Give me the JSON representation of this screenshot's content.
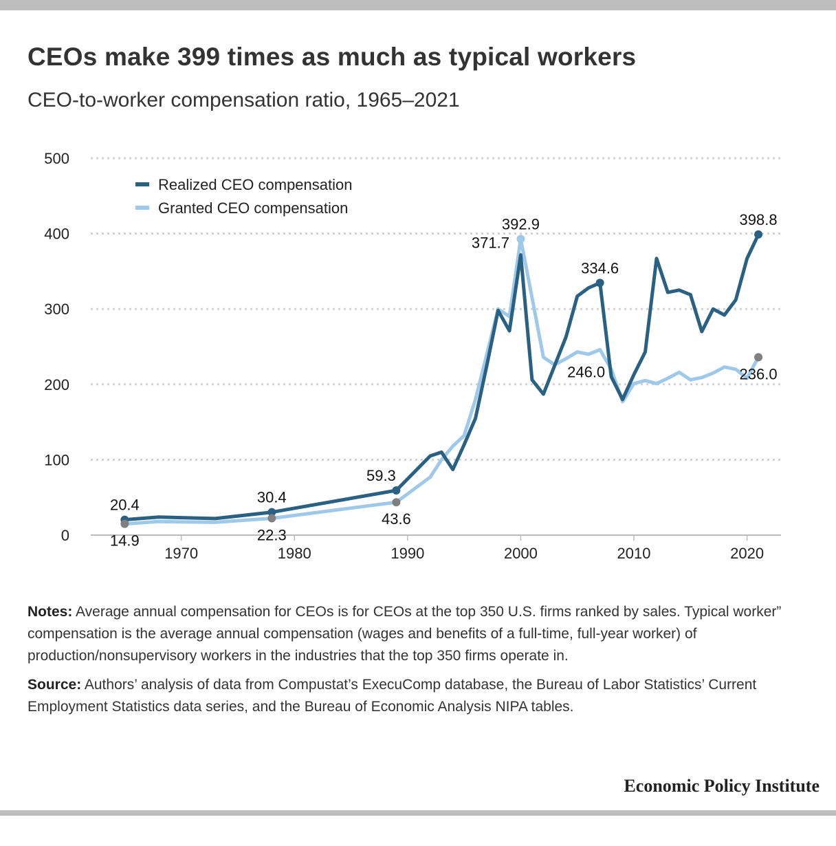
{
  "title": "CEOs make 399 times as much as typical workers",
  "subtitle": "CEO-to-worker compensation ratio, 1965–2021",
  "colors": {
    "realized": "#2a6182",
    "granted": "#9fc9e8",
    "marker_gray": "#808080",
    "grid": "#d2d2d2",
    "axis": "#bbbbbb"
  },
  "chart_data": {
    "type": "line",
    "xlabel": "",
    "ylabel": "",
    "xlim": [
      1962,
      2023
    ],
    "ylim": [
      0,
      500
    ],
    "x_ticks": [
      1970,
      1980,
      1990,
      2000,
      2010,
      2020
    ],
    "y_ticks": [
      0,
      100,
      200,
      300,
      400,
      500
    ],
    "grid": true,
    "legend_position": "top-left",
    "series": [
      {
        "name": "Realized CEO compensation",
        "color": "#2a6182",
        "x": [
          1965,
          1968,
          1973,
          1978,
          1989,
          1992,
          1993,
          1994,
          1995,
          1996,
          1997,
          1998,
          1999,
          2000,
          2001,
          2002,
          2003,
          2004,
          2005,
          2006,
          2007,
          2008,
          2009,
          2010,
          2011,
          2012,
          2013,
          2014,
          2015,
          2016,
          2017,
          2018,
          2019,
          2020,
          2021
        ],
        "y": [
          20.4,
          24,
          22,
          30.4,
          59.3,
          105,
          110,
          87,
          120,
          155,
          225,
          298,
          271,
          371.7,
          206,
          187,
          225,
          263,
          317,
          328,
          334.6,
          210,
          180,
          213,
          243,
          367,
          322,
          325,
          319,
          270,
          300,
          292,
          312,
          367,
          398.8
        ]
      },
      {
        "name": "Granted CEO compensation",
        "color": "#9fc9e8",
        "x": [
          1965,
          1968,
          1973,
          1978,
          1989,
          1992,
          1993,
          1994,
          1995,
          1996,
          1997,
          1998,
          1999,
          2000,
          2001,
          2002,
          2003,
          2004,
          2005,
          2006,
          2007,
          2008,
          2009,
          2010,
          2011,
          2012,
          2013,
          2014,
          2015,
          2016,
          2017,
          2018,
          2019,
          2020,
          2021
        ],
        "y": [
          14.9,
          18,
          17,
          22.3,
          43.6,
          77,
          100,
          118,
          132,
          180,
          240,
          300,
          290,
          392.9,
          315,
          236,
          226,
          234,
          243,
          240,
          246.0,
          220,
          177,
          201,
          205,
          201,
          208,
          216,
          206,
          209,
          215,
          223,
          220,
          208,
          236.0
        ]
      }
    ],
    "markers": [
      {
        "series": 0,
        "x": 1965,
        "y": 20.4
      },
      {
        "series": 0,
        "x": 1978,
        "y": 30.4
      },
      {
        "series": 0,
        "x": 1989,
        "y": 59.3
      },
      {
        "series": 0,
        "x": 2007,
        "y": 334.6
      },
      {
        "series": 0,
        "x": 2021,
        "y": 398.8
      },
      {
        "series": 1,
        "x": 2000,
        "y": 392.9
      },
      {
        "series": -1,
        "x": 1965,
        "y": 14.9
      },
      {
        "series": -1,
        "x": 1978,
        "y": 22.3
      },
      {
        "series": -1,
        "x": 1989,
        "y": 43.6
      },
      {
        "series": -1,
        "x": 2021,
        "y": 236.0
      }
    ],
    "annotations": [
      {
        "text": "20.4",
        "x": 1965,
        "y": 20.4,
        "pos": "above"
      },
      {
        "text": "14.9",
        "x": 1965,
        "y": 14.9,
        "pos": "below"
      },
      {
        "text": "30.4",
        "x": 1978,
        "y": 30.4,
        "pos": "above"
      },
      {
        "text": "22.3",
        "x": 1978,
        "y": 22.3,
        "pos": "below"
      },
      {
        "text": "59.3",
        "x": 1989,
        "y": 59.3,
        "pos": "above-left"
      },
      {
        "text": "43.6",
        "x": 1989,
        "y": 43.6,
        "pos": "below"
      },
      {
        "text": "371.7",
        "x": 2000,
        "y": 371.7,
        "pos": "left"
      },
      {
        "text": "392.9",
        "x": 2000,
        "y": 392.9,
        "pos": "above"
      },
      {
        "text": "334.6",
        "x": 2007,
        "y": 334.6,
        "pos": "above"
      },
      {
        "text": "246.0",
        "x": 2007,
        "y": 246.0,
        "pos": "below-left"
      },
      {
        "text": "398.8",
        "x": 2021,
        "y": 398.8,
        "pos": "above"
      },
      {
        "text": "236.0",
        "x": 2021,
        "y": 236.0,
        "pos": "below"
      }
    ]
  },
  "notes": {
    "notes_label": "Notes:",
    "notes_text": " Average annual compensation for CEOs is for CEOs at the top 350 U.S. firms ranked by sales. Typical worker” compensation is the average annual compensation (wages and benefits of a full-time, full-year worker) of production/nonsupervisory workers in the industries that the top 350 firms operate in.",
    "source_label": "Source:",
    "source_text": " Authors’ analysis of data from Compustat’s ExecuComp database, the Bureau of Labor Statistics’ Current Employment Statistics data series, and the Bureau of Economic Analysis NIPA tables."
  },
  "brand": "Economic Policy Institute"
}
